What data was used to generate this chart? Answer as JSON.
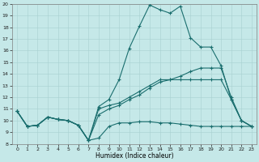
{
  "title": "",
  "xlabel": "Humidex (Indice chaleur)",
  "bg_color": "#c5e8e8",
  "line_color": "#1a6e6e",
  "grid_color": "#a8d0d0",
  "xlim": [
    -0.5,
    23.5
  ],
  "ylim": [
    8,
    20
  ],
  "xticks": [
    0,
    1,
    2,
    3,
    4,
    5,
    6,
    7,
    8,
    9,
    10,
    11,
    12,
    13,
    14,
    15,
    16,
    17,
    18,
    19,
    20,
    21,
    22,
    23
  ],
  "yticks": [
    8,
    9,
    10,
    11,
    12,
    13,
    14,
    15,
    16,
    17,
    18,
    19,
    20
  ],
  "curve1_x": [
    0,
    1,
    2,
    3,
    4,
    5,
    6,
    7,
    8,
    9,
    10,
    11,
    12,
    13,
    14,
    15,
    16,
    17,
    18,
    19,
    20,
    21,
    22,
    23
  ],
  "curve1_y": [
    10.8,
    9.5,
    9.6,
    10.3,
    10.1,
    10.0,
    9.6,
    8.3,
    11.2,
    11.8,
    13.5,
    16.2,
    18.1,
    19.9,
    19.5,
    19.2,
    19.8,
    17.1,
    16.3,
    16.3,
    14.7,
    11.8,
    10.0,
    9.5
  ],
  "curve2_x": [
    0,
    1,
    2,
    3,
    4,
    5,
    6,
    7,
    8,
    9,
    10,
    11,
    12,
    13,
    14,
    15,
    16,
    17,
    18,
    19,
    20,
    21,
    22,
    23
  ],
  "curve2_y": [
    10.8,
    9.5,
    9.6,
    10.3,
    10.1,
    10.0,
    9.6,
    8.3,
    8.5,
    9.5,
    9.8,
    9.8,
    9.9,
    9.9,
    9.8,
    9.8,
    9.7,
    9.6,
    9.5,
    9.5,
    9.5,
    9.5,
    9.5,
    9.5
  ],
  "curve3_x": [
    0,
    1,
    2,
    3,
    4,
    5,
    6,
    7,
    8,
    9,
    10,
    11,
    12,
    13,
    14,
    15,
    16,
    17,
    18,
    19,
    20,
    21,
    22,
    23
  ],
  "curve3_y": [
    10.8,
    9.5,
    9.6,
    10.3,
    10.1,
    10.0,
    9.6,
    8.3,
    10.5,
    11.0,
    11.3,
    11.8,
    12.2,
    12.8,
    13.3,
    13.5,
    13.8,
    14.2,
    14.5,
    14.5,
    14.5,
    12.0,
    10.0,
    9.5
  ],
  "curve4_x": [
    0,
    1,
    2,
    3,
    4,
    5,
    6,
    7,
    8,
    9,
    10,
    11,
    12,
    13,
    14,
    15,
    16,
    17,
    18,
    19,
    20,
    21,
    22,
    23
  ],
  "curve4_y": [
    10.8,
    9.5,
    9.6,
    10.3,
    10.1,
    10.0,
    9.6,
    8.3,
    11.0,
    11.3,
    11.5,
    12.0,
    12.5,
    13.0,
    13.5,
    13.5,
    13.5,
    13.5,
    13.5,
    13.5,
    13.5,
    11.8,
    10.0,
    9.5
  ]
}
